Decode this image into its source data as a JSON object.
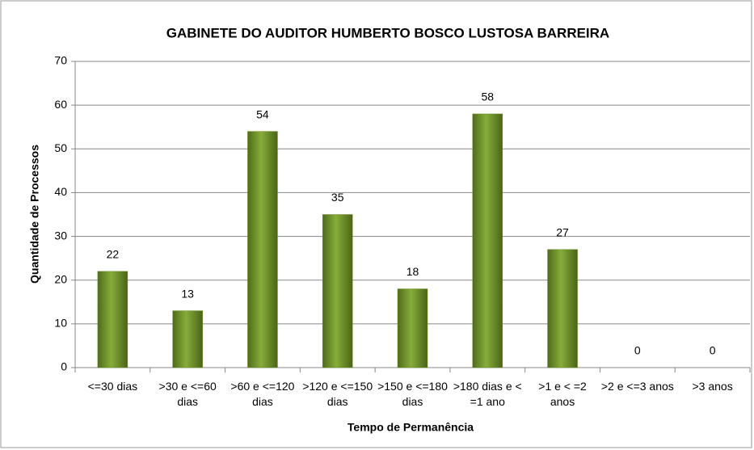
{
  "chart_data": {
    "type": "bar",
    "title": "GABINETE DO AUDITOR HUMBERTO BOSCO LUSTOSA BARREIRA",
    "x_label": "Tempo de Permanência",
    "y_label": "Quantidade de Processos",
    "categories": [
      "<=30 dias",
      ">30 e <=60 dias",
      ">60 e <=120 dias",
      ">120 e <=150 dias",
      ">150 e <=180 dias",
      ">180 dias e < =1 ano",
      ">1 e < =2 anos",
      ">2 e <=3 anos",
      ">3 anos"
    ],
    "values": [
      22,
      13,
      54,
      35,
      18,
      58,
      27,
      0,
      0
    ],
    "color": "#6b8e23",
    "ylim": [
      0,
      70
    ],
    "yticks": [
      0,
      10,
      20,
      30,
      40,
      50,
      60,
      70
    ],
    "grid": true
  }
}
